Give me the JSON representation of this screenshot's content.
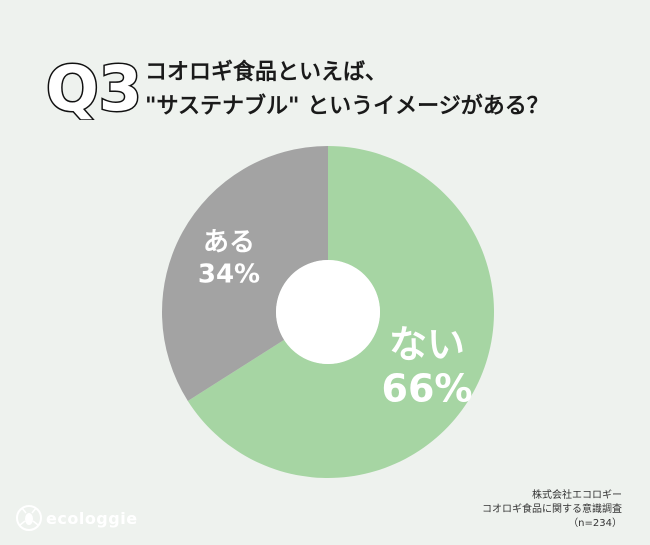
{
  "badge": "Q3",
  "title_lines": [
    "コオロギ食品といえば、",
    "\"サステナブル\" というイメージがある？"
  ],
  "chart_data": {
    "type": "pie",
    "donut": true,
    "categories": [
      "ない",
      "ある"
    ],
    "values": [
      66,
      34
    ],
    "value_labels": [
      "66%",
      "34%"
    ],
    "colors": [
      "#a6d5a3",
      "#a3a3a3"
    ],
    "start": "12 o'clock, clockwise",
    "legend": "none"
  },
  "source": [
    "株式会社エコロギー",
    "コオロギ食品に関する意識調査",
    "（n=234）"
  ],
  "brand": {
    "name": "ecologgie",
    "icon": "cricket-icon"
  }
}
